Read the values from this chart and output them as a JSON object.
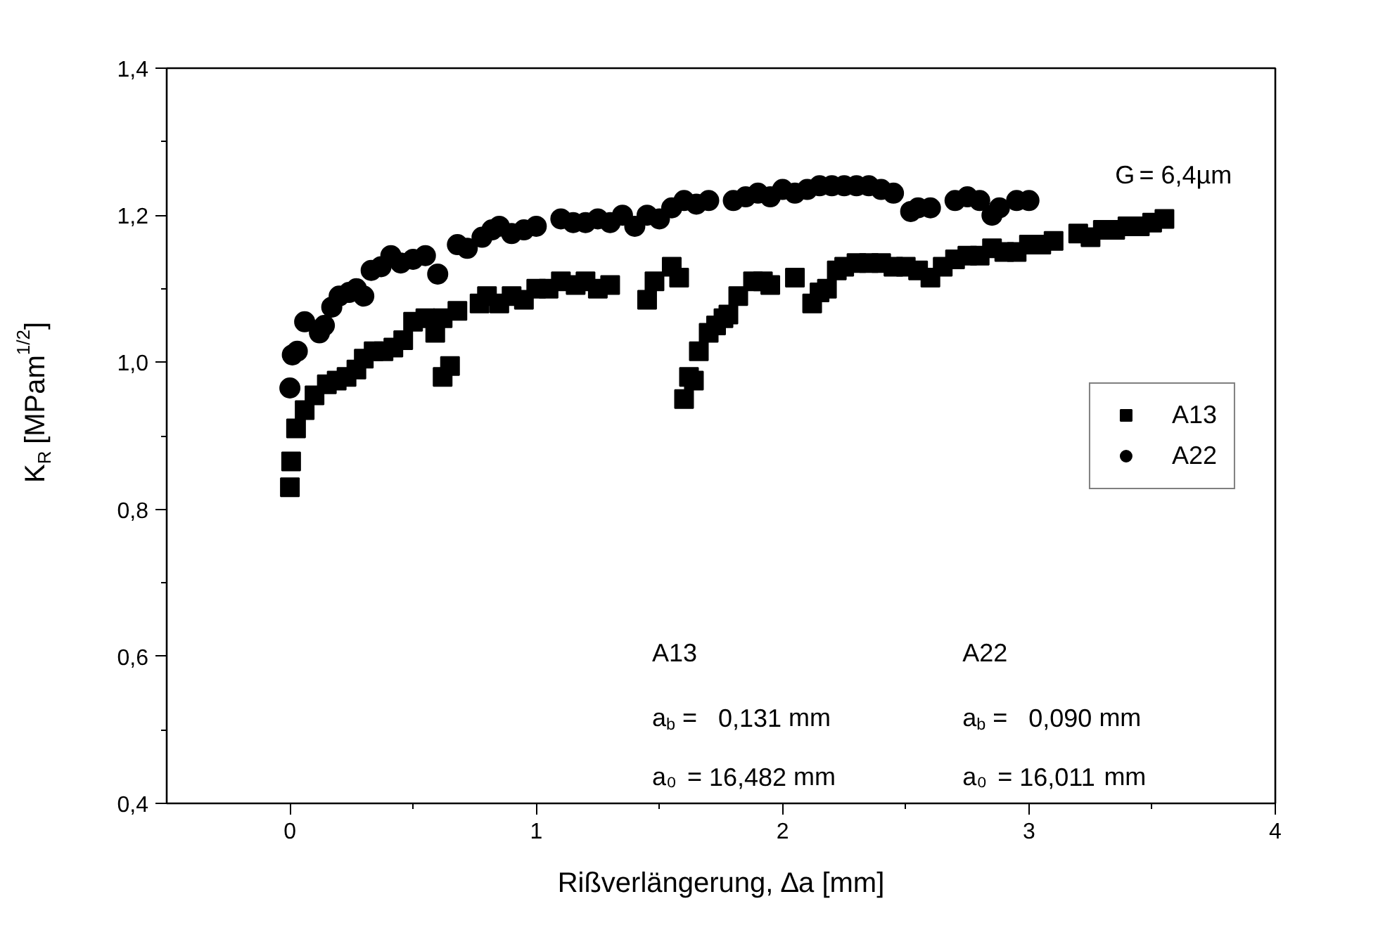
{
  "chart_data": {
    "type": "scatter",
    "xlabel": "Rißverlängerung, ∆a [mm]",
    "ylabel": "K$_{R}$ [MPam$^{1/2}$]",
    "xlim": [
      -0.5,
      4
    ],
    "ylim": [
      0.4,
      1.4
    ],
    "xticks": [
      0,
      1,
      2,
      3,
      4
    ],
    "yticks": [
      {
        "value": 0.4,
        "label": "0,4"
      },
      {
        "value": 0.6,
        "label": "0,6"
      },
      {
        "value": 0.8,
        "label": "0,8"
      },
      {
        "value": 1.0,
        "label": "1,0"
      },
      {
        "value": 1.2,
        "label": "1,2"
      },
      {
        "value": 1.4,
        "label": "1,4"
      }
    ],
    "grid": false,
    "legend": "right",
    "series": [
      {
        "name": "A13",
        "color": "#000000",
        "marker": "square",
        "x": [
          0,
          0.005,
          0.025,
          0.06,
          0.1,
          0.15,
          0.19,
          0.23,
          0.27,
          0.3,
          0.34,
          0.38,
          0.42,
          0.46,
          0.5,
          0.55,
          0.59,
          0.62,
          0.62,
          0.65,
          0.68,
          0.77,
          0.8,
          0.85,
          0.9,
          0.95,
          1.0,
          1.05,
          1.1,
          1.16,
          1.2,
          1.25,
          1.3,
          1.45,
          1.48,
          1.55,
          1.58,
          1.6,
          1.62,
          1.64,
          1.66,
          1.7,
          1.73,
          1.76,
          1.78,
          1.82,
          1.88,
          1.92,
          1.95,
          2.05,
          2.12,
          2.15,
          2.18,
          2.22,
          2.25,
          2.3,
          2.35,
          2.4,
          2.45,
          2.5,
          2.55,
          2.6,
          2.65,
          2.7,
          2.75,
          2.8,
          2.85,
          2.9,
          2.95,
          3.0,
          3.05,
          3.1,
          3.2,
          3.25,
          3.3,
          3.35,
          3.4,
          3.45,
          3.5,
          3.55
        ],
        "values": [
          0.83,
          0.865,
          0.91,
          0.935,
          0.955,
          0.97,
          0.975,
          0.98,
          0.99,
          1.005,
          1.015,
          1.015,
          1.02,
          1.03,
          1.055,
          1.06,
          1.04,
          1.06,
          0.98,
          0.995,
          1.07,
          1.08,
          1.09,
          1.08,
          1.09,
          1.085,
          1.1,
          1.1,
          1.11,
          1.105,
          1.11,
          1.1,
          1.105,
          1.085,
          1.11,
          1.13,
          1.115,
          0.95,
          0.98,
          0.975,
          1.015,
          1.04,
          1.05,
          1.06,
          1.065,
          1.09,
          1.11,
          1.11,
          1.105,
          1.115,
          1.08,
          1.095,
          1.1,
          1.125,
          1.13,
          1.135,
          1.135,
          1.135,
          1.13,
          1.13,
          1.125,
          1.115,
          1.13,
          1.14,
          1.145,
          1.145,
          1.155,
          1.15,
          1.15,
          1.16,
          1.16,
          1.165,
          1.175,
          1.17,
          1.18,
          1.18,
          1.185,
          1.185,
          1.19,
          1.195
        ]
      },
      {
        "name": "A22",
        "color": "#000000",
        "marker": "circle",
        "x": [
          0,
          0.01,
          0.03,
          0.06,
          0.12,
          0.14,
          0.17,
          0.2,
          0.24,
          0.27,
          0.3,
          0.33,
          0.37,
          0.41,
          0.45,
          0.5,
          0.55,
          0.6,
          0.68,
          0.72,
          0.78,
          0.82,
          0.85,
          0.9,
          0.95,
          1.0,
          1.1,
          1.15,
          1.2,
          1.25,
          1.3,
          1.35,
          1.4,
          1.45,
          1.5,
          1.55,
          1.6,
          1.65,
          1.7,
          1.8,
          1.85,
          1.9,
          1.95,
          2.0,
          2.05,
          2.1,
          2.15,
          2.2,
          2.25,
          2.3,
          2.35,
          2.4,
          2.45,
          2.52,
          2.55,
          2.6,
          2.7,
          2.75,
          2.8,
          2.85,
          2.88,
          2.95,
          3.0
        ],
        "values": [
          0.965,
          1.01,
          1.015,
          1.055,
          1.04,
          1.05,
          1.075,
          1.09,
          1.095,
          1.1,
          1.09,
          1.125,
          1.13,
          1.145,
          1.135,
          1.14,
          1.145,
          1.12,
          1.16,
          1.155,
          1.17,
          1.18,
          1.185,
          1.175,
          1.18,
          1.185,
          1.195,
          1.19,
          1.19,
          1.195,
          1.19,
          1.2,
          1.185,
          1.2,
          1.195,
          1.21,
          1.22,
          1.215,
          1.22,
          1.22,
          1.225,
          1.23,
          1.225,
          1.235,
          1.23,
          1.235,
          1.24,
          1.24,
          1.24,
          1.24,
          1.24,
          1.235,
          1.23,
          1.205,
          1.21,
          1.21,
          1.22,
          1.225,
          1.22,
          1.2,
          1.21,
          1.22,
          1.22
        ]
      }
    ],
    "annotations": [
      "G = 6,4µm",
      "A13",
      "a$_{b}$ =   0,131 mm",
      "a₀ = 16,482 mm",
      "A22",
      "a$_{b}$ =   0,090 mm",
      "a₀ = 16,011 mm"
    ]
  }
}
